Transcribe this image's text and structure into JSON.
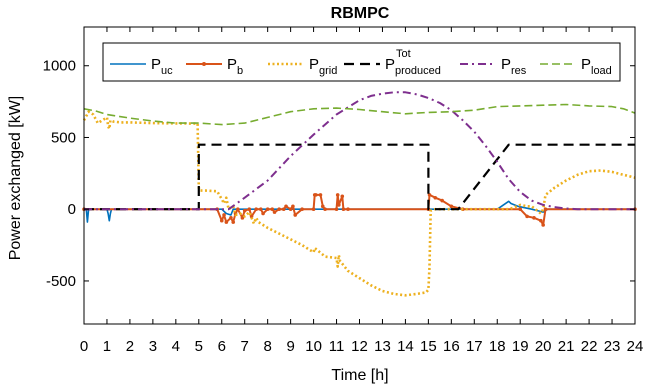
{
  "chart_data": {
    "type": "line",
    "title": "RBMPC",
    "xlabel": "Time [h]",
    "ylabel": "Power exchanged [kW]",
    "xlim": [
      0,
      24
    ],
    "ylim": [
      -800,
      1270
    ],
    "xticks": [
      0,
      1,
      2,
      3,
      4,
      5,
      6,
      7,
      8,
      9,
      10,
      11,
      12,
      13,
      14,
      15,
      16,
      17,
      18,
      19,
      20,
      21,
      22,
      23,
      24
    ],
    "yticks": [
      -500,
      0,
      500,
      1000
    ],
    "legend_position": "top",
    "series": [
      {
        "name": "P",
        "sub": "uc",
        "sup": "",
        "color": "#0072BD",
        "style": "solid",
        "width": 1.6,
        "x": [
          0,
          0.1,
          0.15,
          0.2,
          1.0,
          1.05,
          1.1,
          1.15,
          1.2,
          6,
          6.2,
          6.4,
          6.5,
          18,
          18.5,
          18.6,
          18.9,
          19.5,
          20,
          20.2,
          24
        ],
        "y": [
          0,
          0,
          -90,
          0,
          0,
          -30,
          -80,
          -30,
          0,
          0,
          -30,
          -40,
          0,
          0,
          55,
          40,
          20,
          0,
          -20,
          0,
          0
        ]
      },
      {
        "name": "P",
        "sub": "b",
        "sup": "",
        "color": "#D95319",
        "style": "solid-dot",
        "width": 2.0,
        "x": [
          0,
          5.8,
          6.0,
          6.1,
          6.2,
          6.4,
          6.5,
          6.6,
          6.7,
          6.9,
          7.0,
          7.2,
          7.3,
          7.5,
          7.7,
          7.8,
          8.0,
          8.2,
          8.3,
          8.5,
          8.7,
          8.8,
          9.0,
          9.1,
          9.2,
          9.5,
          10.0,
          10.05,
          10.1,
          10.3,
          10.4,
          10.5,
          11.0,
          11.05,
          11.1,
          11.25,
          11.3,
          11.5,
          15.0,
          15.05,
          15.3,
          15.6,
          16.0,
          16.5,
          19.0,
          19.3,
          19.6,
          19.9,
          20.0,
          20.1,
          24
        ],
        "y": [
          0,
          0,
          -80,
          -40,
          -90,
          -60,
          -90,
          -30,
          0,
          -60,
          -10,
          0,
          -50,
          0,
          0,
          -30,
          0,
          0,
          -20,
          0,
          0,
          20,
          0,
          20,
          -40,
          0,
          0,
          100,
          100,
          100,
          20,
          0,
          0,
          100,
          30,
          90,
          0,
          0,
          0,
          100,
          80,
          60,
          20,
          0,
          0,
          -50,
          -60,
          -80,
          -110,
          0,
          0
        ]
      },
      {
        "name": "P",
        "sub": "grid",
        "sup": "",
        "color": "#EDB120",
        "style": "dotted",
        "width": 2.6,
        "x": [
          0,
          0.1,
          0.2,
          0.4,
          0.6,
          1.0,
          1.05,
          1.1,
          1.15,
          1.3,
          1.6,
          2,
          3,
          4,
          4.95,
          5.0,
          5.05,
          5.3,
          5.8,
          6.0,
          6.1,
          6.2,
          6.3,
          6.5,
          6.6,
          6.8,
          7.0,
          7.2,
          7.4,
          7.5,
          7.6,
          7.8,
          8.0,
          8.5,
          9.0,
          9.5,
          10.0,
          10.05,
          10.5,
          11.0,
          11.05,
          11.1,
          11.15,
          11.5,
          12,
          12.5,
          13,
          13.5,
          14,
          14.5,
          14.9,
          15.0,
          15.05,
          15.1,
          15.3,
          16.0,
          18.0,
          18.5,
          18.7,
          19.0,
          19.3,
          19.5,
          19.9,
          20.0,
          20.1,
          20.5,
          21,
          21.5,
          22,
          22.5,
          23,
          23.5,
          24
        ],
        "y": [
          620,
          650,
          680,
          660,
          600,
          640,
          580,
          560,
          620,
          610,
          605,
          605,
          600,
          598,
          597,
          150,
          130,
          130,
          125,
          70,
          40,
          80,
          0,
          20,
          -40,
          -30,
          -50,
          -20,
          -100,
          -60,
          -90,
          -110,
          -130,
          -170,
          -210,
          -250,
          -300,
          -270,
          -330,
          -340,
          -400,
          -320,
          -360,
          -430,
          -480,
          -530,
          -570,
          -590,
          -600,
          -590,
          -580,
          -560,
          -400,
          -10,
          0,
          0,
          0,
          0,
          10,
          30,
          20,
          20,
          -30,
          0,
          100,
          150,
          200,
          240,
          265,
          270,
          260,
          240,
          220
        ]
      },
      {
        "name": "P",
        "sub": "produced",
        "sup": "Tot",
        "color": "#000000",
        "style": "dashed",
        "width": 2.2,
        "x": [
          0,
          5.0,
          5.0,
          15.0,
          15.0,
          16.3,
          18.5,
          24
        ],
        "y": [
          0,
          0,
          450,
          450,
          0,
          0,
          450,
          450
        ]
      },
      {
        "name": "P",
        "sub": "res",
        "sup": "",
        "color": "#7E2F8E",
        "style": "dashdot",
        "width": 2.0,
        "x": [
          0,
          6.3,
          7,
          8,
          9,
          10,
          11,
          12,
          12.5,
          13,
          13.5,
          14,
          14.5,
          15,
          15.5,
          16,
          16.5,
          17,
          17.5,
          18,
          18.5,
          19,
          19.5,
          20,
          20.5,
          21,
          21.5,
          22,
          22.5,
          23,
          24
        ],
        "y": [
          0,
          0,
          80,
          200,
          370,
          520,
          660,
          760,
          790,
          805,
          815,
          815,
          800,
          775,
          740,
          690,
          620,
          540,
          440,
          330,
          210,
          120,
          60,
          30,
          15,
          5,
          0,
          0,
          0,
          0,
          0
        ]
      },
      {
        "name": "P",
        "sub": "load",
        "sup": "",
        "color": "#77AC30",
        "style": "dashed",
        "width": 1.6,
        "x": [
          0,
          0.5,
          1,
          2,
          3,
          4,
          5,
          6,
          7,
          8,
          9,
          10,
          11,
          12,
          13,
          14,
          15,
          16,
          17,
          18,
          19,
          20,
          21,
          22,
          23,
          23.5,
          24
        ],
        "y": [
          700,
          685,
          660,
          635,
          615,
          600,
          600,
          590,
          600,
          640,
          680,
          700,
          705,
          695,
          680,
          665,
          675,
          680,
          690,
          715,
          720,
          725,
          730,
          720,
          715,
          700,
          670
        ]
      }
    ]
  }
}
